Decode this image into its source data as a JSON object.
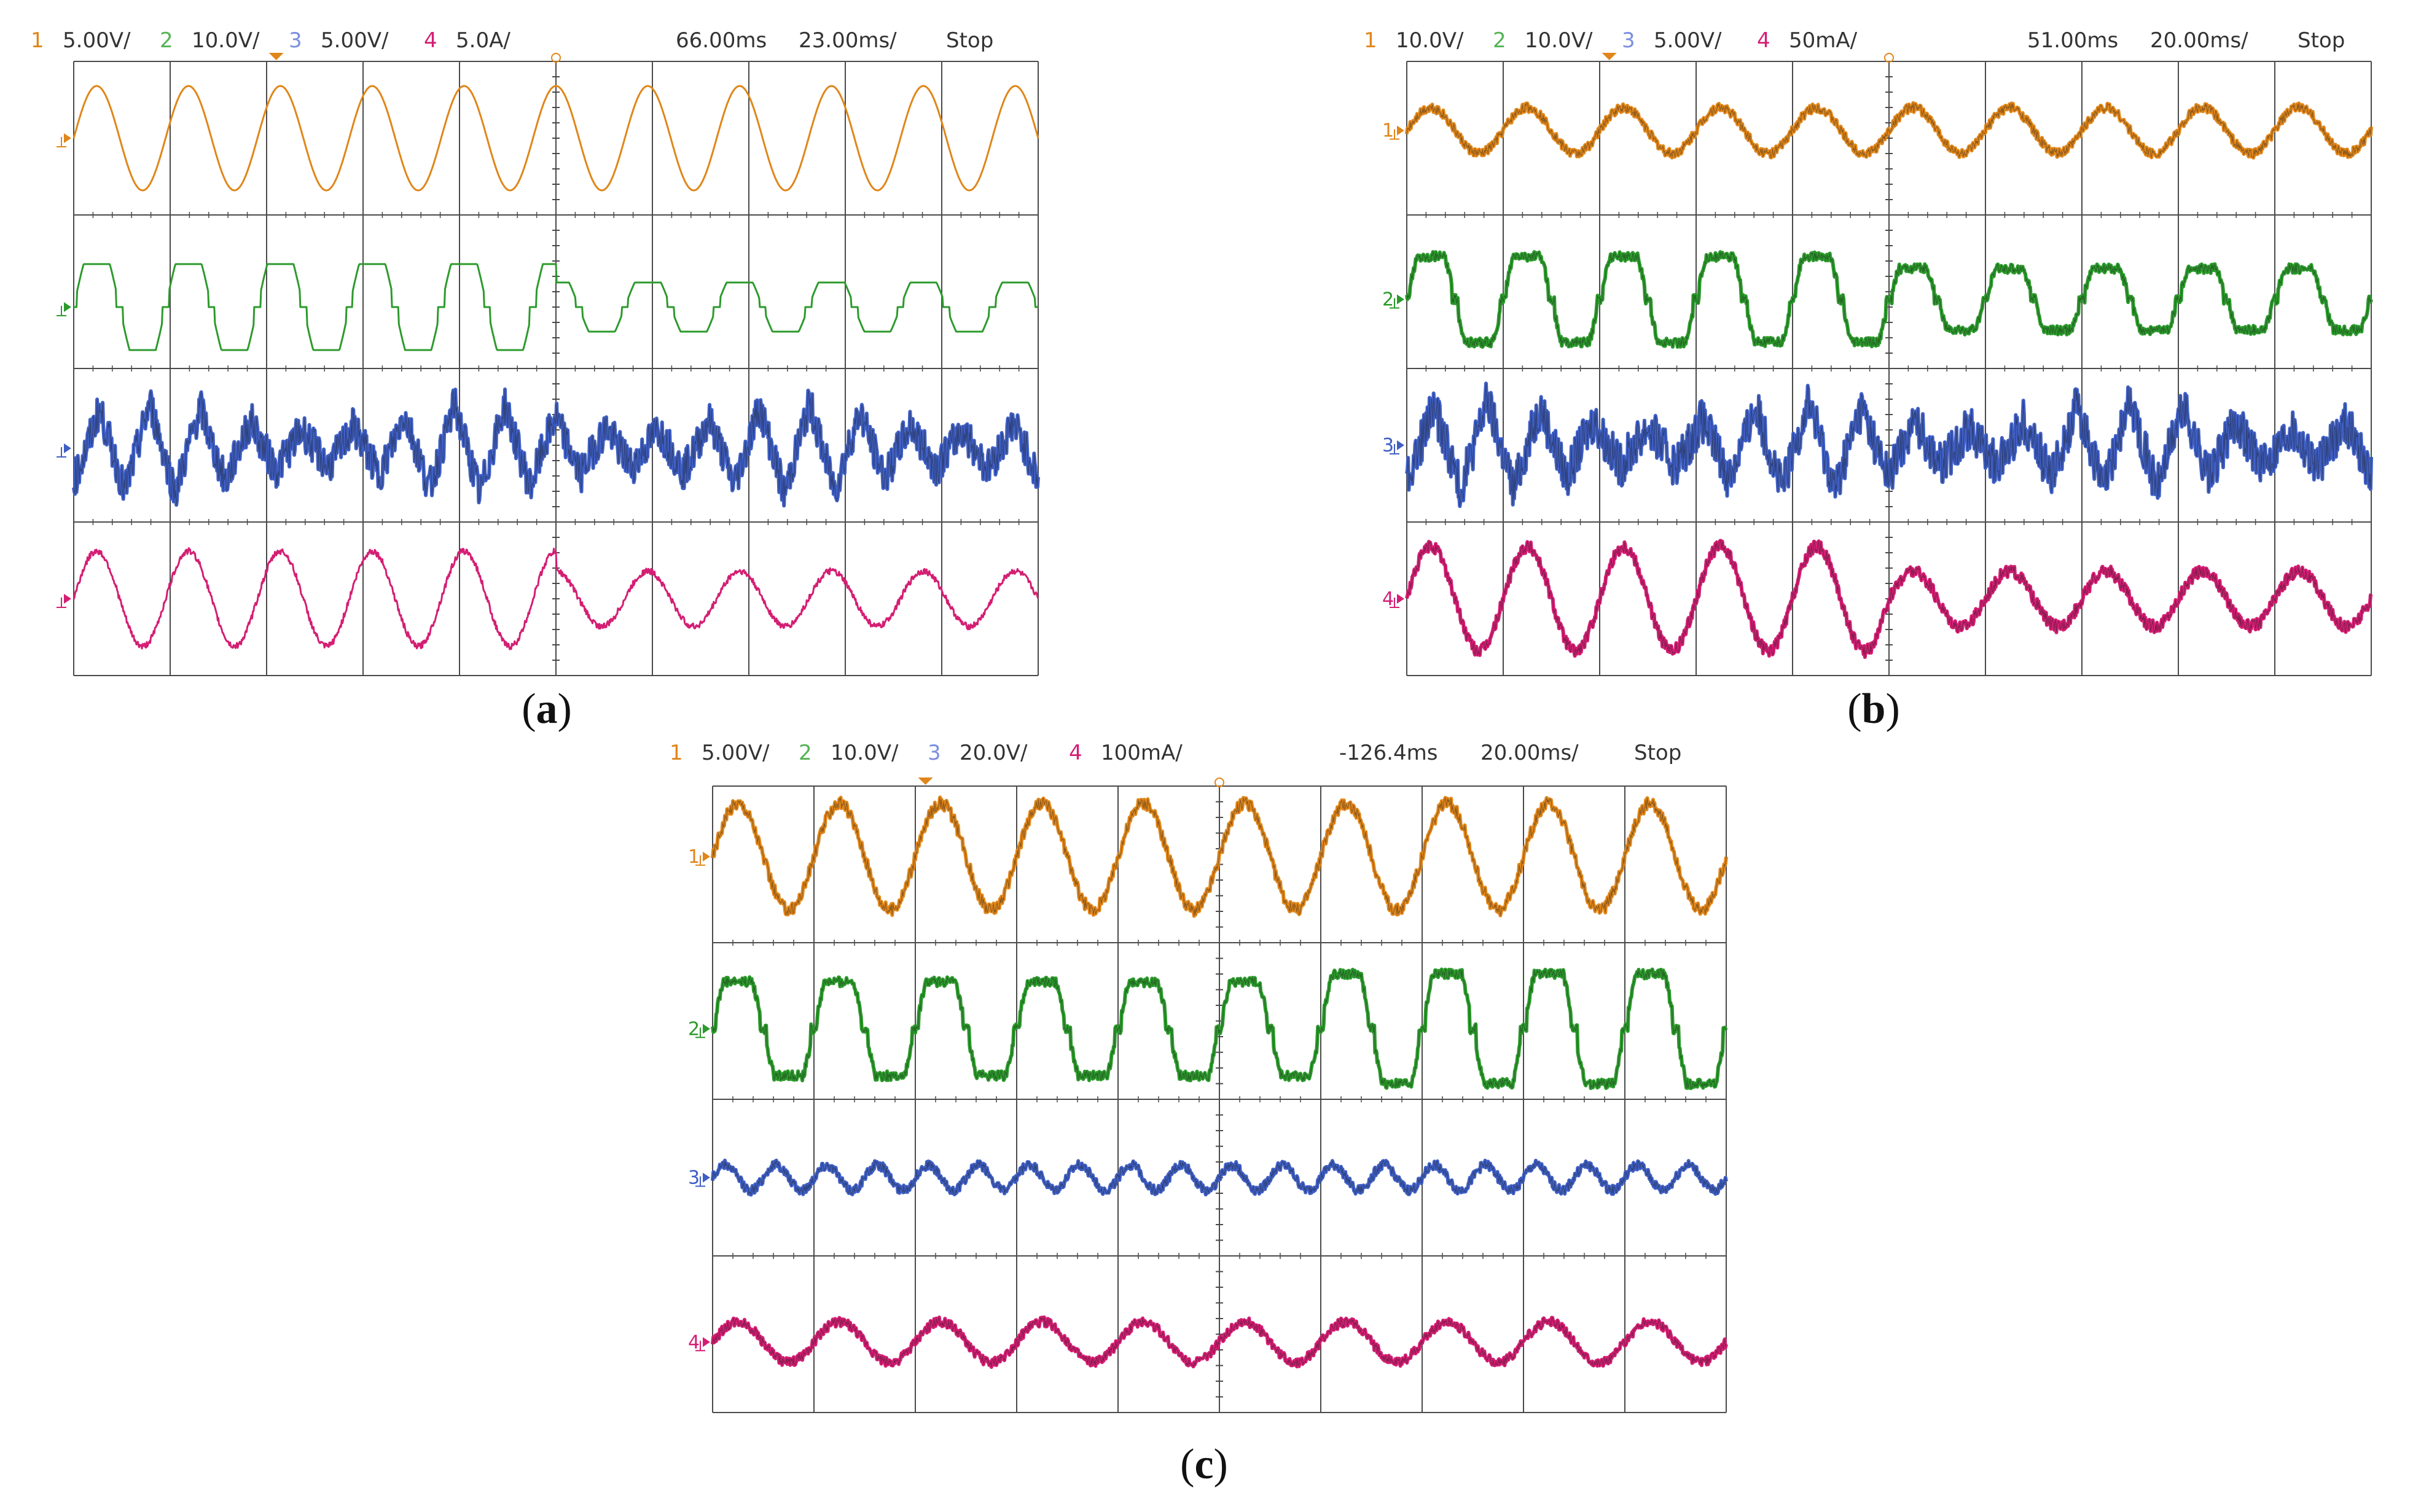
{
  "panels": [
    {
      "caption": "a",
      "header": {
        "ch1_num": "1",
        "ch1_scale": "5.00V/",
        "ch2_num": "2",
        "ch2_scale": "10.0V/",
        "ch3_num": "3",
        "ch3_scale": "5.00V/",
        "ch4_num": "4",
        "ch4_scale": "5.0A/",
        "trigger_time": "66.00ms",
        "timebase": "23.00ms/",
        "status": "Stop"
      },
      "channel_markers": [
        "",
        "",
        "",
        ""
      ]
    },
    {
      "caption": "b",
      "header": {
        "ch1_num": "1",
        "ch1_scale": "10.0V/",
        "ch2_num": "2",
        "ch2_scale": "10.0V/",
        "ch3_num": "3",
        "ch3_scale": "5.00V/",
        "ch4_num": "4",
        "ch4_scale": "50mA/",
        "trigger_time": "51.00ms",
        "timebase": "20.00ms/",
        "status": "Stop"
      },
      "channel_markers": [
        "1",
        "2",
        "3",
        "4"
      ]
    },
    {
      "caption": "c",
      "header": {
        "ch1_num": "1",
        "ch1_scale": "5.00V/",
        "ch2_num": "2",
        "ch2_scale": "10.0V/",
        "ch3_num": "3",
        "ch3_scale": "20.0V/",
        "ch4_num": "4",
        "ch4_scale": "100mA/",
        "trigger_time": "-126.4ms",
        "timebase": "20.00ms/",
        "status": "Stop"
      },
      "channel_markers": [
        "1",
        "2",
        "3",
        "4"
      ]
    }
  ],
  "colors": {
    "ch1": "#E0861A",
    "ch2": "#2C9A2C",
    "ch3": "#3F5FC4",
    "ch4": "#D41E73",
    "grid": "#4A4A4A",
    "ch3_label": "#7B8FE0",
    "ch2_label": "#55B355"
  },
  "chart_data": [
    {
      "type": "line",
      "panel": "a",
      "x_divisions": 10,
      "y_divisions": 4,
      "series": [
        {
          "channel": 1,
          "shape": "sine",
          "cycles": 10.5,
          "amplitude_div": 0.34,
          "offset_div": 0.5,
          "noise": 0.0
        },
        {
          "channel": 2,
          "shape": "clipped-sine",
          "cycles": 10.5,
          "amplitude_div": 0.28,
          "offset_div": 1.6,
          "noise": 0.0,
          "amp_change_at": 0.5,
          "amp_after": 0.16
        },
        {
          "channel": 3,
          "shape": "noisy-triangle",
          "cycles": 19,
          "amplitude_div": 0.3,
          "offset_div": 2.52,
          "noise": 0.12
        },
        {
          "channel": 4,
          "shape": "sine",
          "cycles": 10.5,
          "amplitude_div": 0.31,
          "offset_div": 3.5,
          "noise": 0.02,
          "amp_change_at": 0.5,
          "amp_after": 0.18
        }
      ]
    },
    {
      "type": "line",
      "panel": "b",
      "x_divisions": 10,
      "y_divisions": 4,
      "series": [
        {
          "channel": 1,
          "shape": "sine",
          "cycles": 10,
          "amplitude_div": 0.15,
          "offset_div": 0.45,
          "noise": 0.03
        },
        {
          "channel": 2,
          "shape": "clipped-sine",
          "cycles": 10,
          "amplitude_div": 0.28,
          "offset_div": 1.55,
          "noise": 0.03,
          "amp_change_at": 0.5,
          "amp_after": 0.2
        },
        {
          "channel": 3,
          "shape": "noisy-triangle",
          "cycles": 18,
          "amplitude_div": 0.3,
          "offset_div": 2.5,
          "noise": 0.14
        },
        {
          "channel": 4,
          "shape": "sine",
          "cycles": 10,
          "amplitude_div": 0.34,
          "offset_div": 3.5,
          "noise": 0.04,
          "amp_change_at": 0.5,
          "amp_after": 0.18
        }
      ]
    },
    {
      "type": "line",
      "panel": "c",
      "x_divisions": 10,
      "y_divisions": 4,
      "series": [
        {
          "channel": 1,
          "shape": "sine",
          "cycles": 10,
          "amplitude_div": 0.34,
          "offset_div": 0.45,
          "noise": 0.04
        },
        {
          "channel": 2,
          "shape": "clipped-sine",
          "cycles": 10,
          "amplitude_div": 0.3,
          "offset_div": 1.55,
          "noise": 0.03,
          "amp_change_at": 0.6,
          "amp_after": 0.35
        },
        {
          "channel": 3,
          "shape": "sine",
          "cycles": 20,
          "amplitude_div": 0.08,
          "offset_div": 2.5,
          "noise": 0.03
        },
        {
          "channel": 4,
          "shape": "sine",
          "cycles": 10,
          "amplitude_div": 0.13,
          "offset_div": 3.55,
          "noise": 0.03
        }
      ]
    }
  ]
}
